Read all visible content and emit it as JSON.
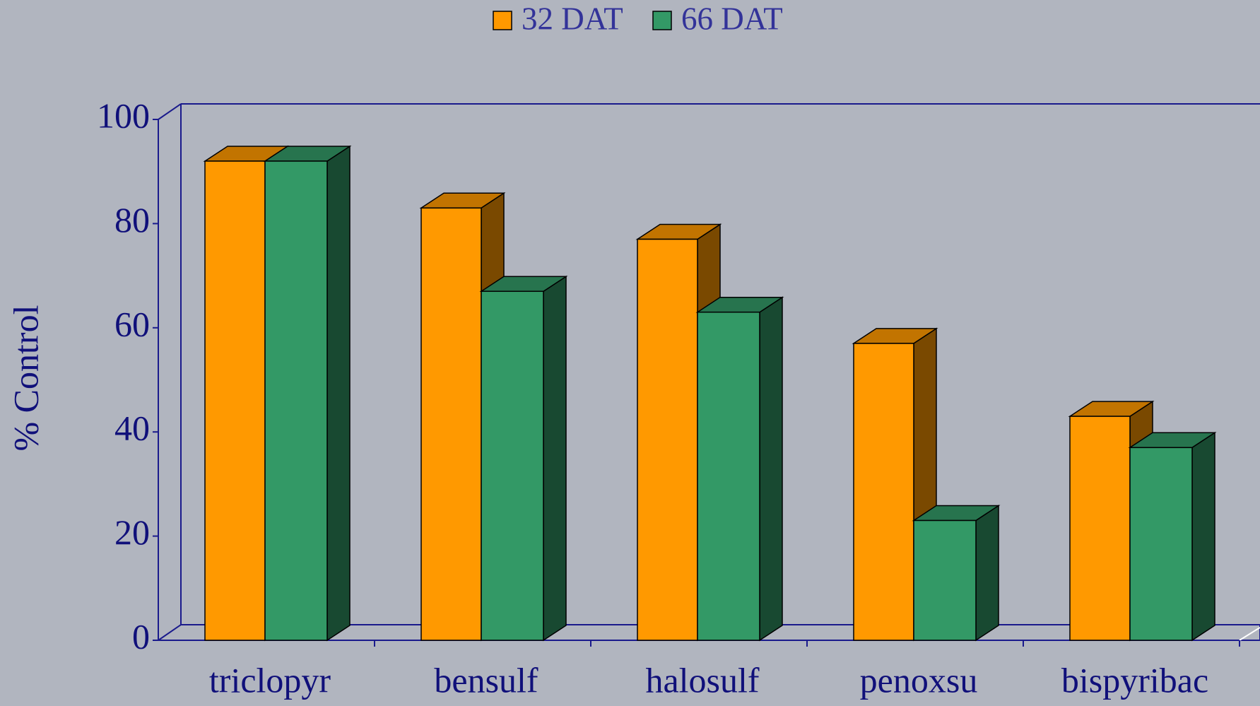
{
  "chart_data": {
    "type": "bar3d",
    "ylabel": "% Control",
    "categories": [
      "triclopyr",
      "bensulf",
      "halosulf",
      "penoxsu",
      "bispyribac"
    ],
    "series": [
      {
        "name": "32 DAT",
        "color": "#ff9900",
        "values": [
          92,
          83,
          77,
          57,
          43
        ]
      },
      {
        "name": "66 DAT",
        "color": "#339966",
        "values": [
          92,
          67,
          63,
          23,
          37
        ]
      }
    ],
    "ylim": [
      0,
      100
    ],
    "yticks": [
      0,
      20,
      40,
      60,
      80,
      100
    ],
    "legend": "top"
  }
}
